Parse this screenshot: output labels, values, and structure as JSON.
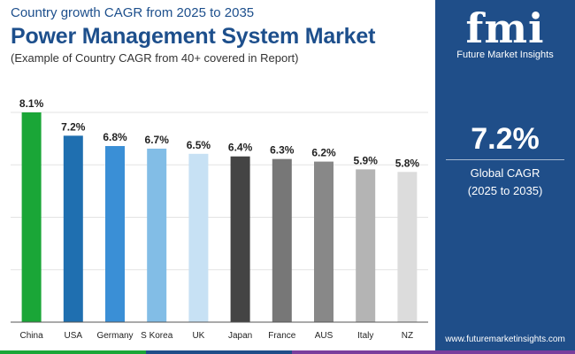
{
  "header": {
    "top": "Country growth CAGR from 2025 to 2035",
    "title": "Power Management System Market",
    "sub": "(Example of Country CAGR from 40+ covered in Report)"
  },
  "sidebar": {
    "logo_mark": "fmi",
    "logo_text": "Future Market Insights",
    "cagr_value": "7.2%",
    "cagr_label_1": "Global CAGR",
    "cagr_label_2": "(2025 to 2035)",
    "website": "www.futuremarketinsights.com"
  },
  "chart_data": {
    "type": "bar",
    "title": "Power Management System Market",
    "xlabel": "",
    "ylabel": "",
    "categories": [
      "China",
      "USA",
      "Germany",
      "S Korea",
      "UK",
      "Japan",
      "France",
      "AUS",
      "Italy",
      "NZ"
    ],
    "values": [
      8.1,
      7.2,
      6.8,
      6.7,
      6.5,
      6.4,
      6.3,
      6.2,
      5.9,
      5.8
    ],
    "labels": [
      "8.1%",
      "7.2%",
      "6.8%",
      "6.7%",
      "6.5%",
      "6.4%",
      "6.3%",
      "6.2%",
      "5.9%",
      "5.8%"
    ],
    "colors": [
      "#1aa637",
      "#1f6fb0",
      "#3a8fd6",
      "#82bde6",
      "#c7e1f4",
      "#444444",
      "#777777",
      "#888888",
      "#b4b4b4",
      "#dcdcdc"
    ],
    "ylim": [
      0,
      8.1
    ],
    "grid": true
  },
  "footer_colors": [
    "#1aa637",
    "#1f4e89",
    "#7a3e9d"
  ]
}
